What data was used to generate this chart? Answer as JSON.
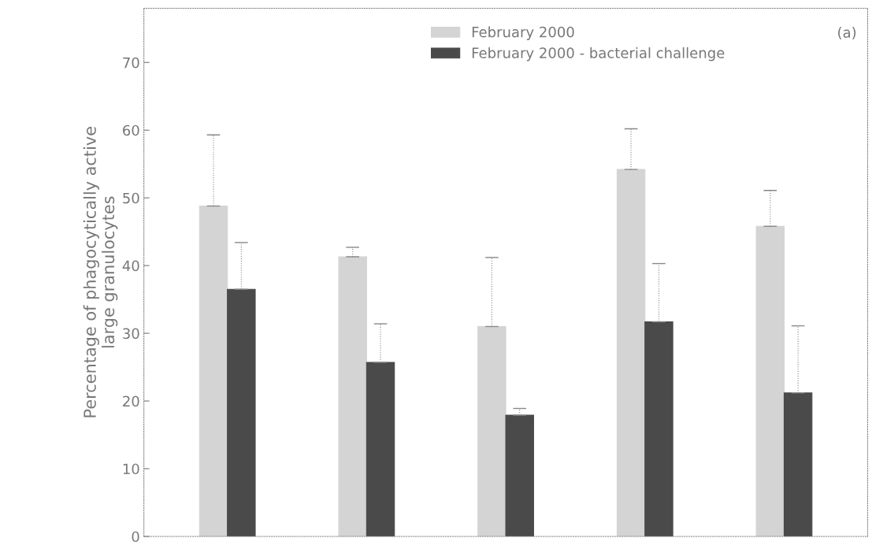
{
  "chart_data": {
    "type": "bar",
    "ylabel": "Percentage of phagocytically active\nlarge granulocytes",
    "categories": [
      null,
      null,
      null,
      null,
      null
    ],
    "series": [
      {
        "name": "February 2000",
        "color": "#d4d4d4",
        "values": [
          48.8,
          41.3,
          31.0,
          54.2,
          45.8
        ],
        "errors": [
          [
            48.8,
            59.3
          ],
          [
            41.3,
            42.7
          ],
          [
            31.0,
            41.2
          ],
          [
            54.2,
            60.2
          ],
          [
            45.8,
            51.1
          ]
        ]
      },
      {
        "name": "February 2000 - bacterial challenge",
        "color": "#4a4a4a",
        "values": [
          36.5,
          25.7,
          17.9,
          31.7,
          21.2
        ],
        "errors": [
          [
            36.5,
            43.4
          ],
          [
            25.7,
            31.4
          ],
          [
            17.9,
            18.9
          ],
          [
            31.7,
            40.3
          ],
          [
            21.2,
            31.1
          ]
        ]
      }
    ],
    "ylim": [
      0,
      78
    ],
    "yticks": [
      0,
      10,
      20,
      30,
      40,
      50,
      60,
      70
    ],
    "legend": "top",
    "grid": false,
    "annotations": [
      "(a)"
    ]
  }
}
